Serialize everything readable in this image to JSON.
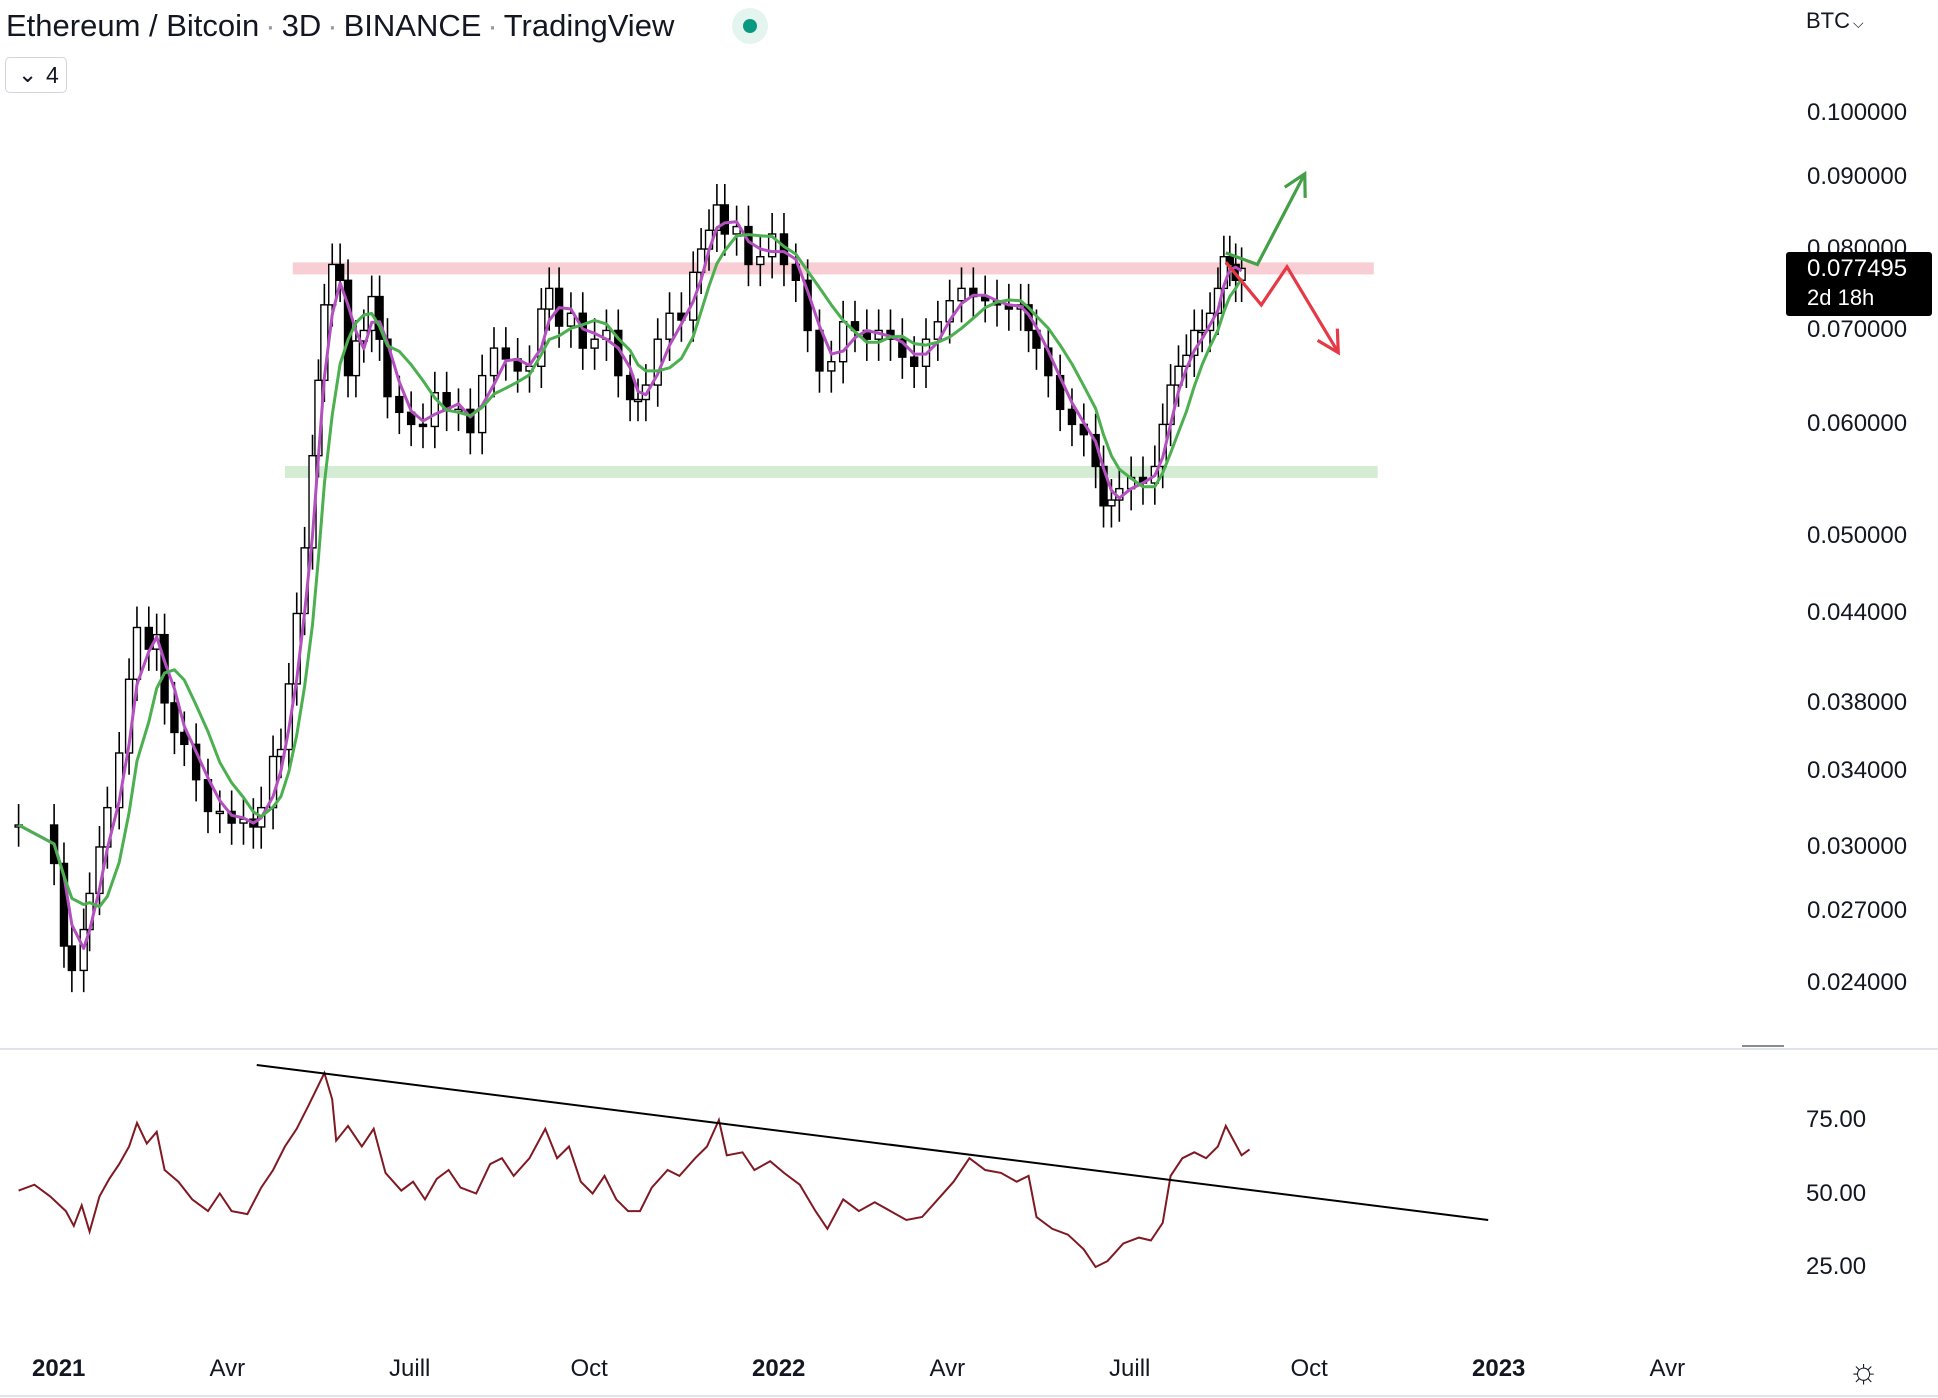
{
  "header": {
    "title_parts": [
      "Ethereum / Bitcoin",
      "3D",
      "BINANCE",
      "TradingView"
    ],
    "separator": "·",
    "collapse_count": "4",
    "currency": "BTC"
  },
  "last_price": {
    "value": "0.077495",
    "countdown": "2d 18h"
  },
  "colors": {
    "candle": "#000000",
    "ma_fast": "#b44fc0",
    "ma_slow": "#4caf50",
    "resistance_zone": "#f8cdd3",
    "support_zone": "#d4ecd4",
    "rsi": "#801922",
    "trendline": "#000000",
    "arrow_up": "#43a047",
    "arrow_down": "#e53945",
    "accent_dot": "#089981"
  },
  "chart_data": [
    {
      "type": "candlestick",
      "symbol": "Ethereum / Bitcoin",
      "interval": "3D",
      "exchange": "BINANCE",
      "scale": "log",
      "y_ticks": [
        "0.100000",
        "0.090000",
        "0.080000",
        "0.070000",
        "0.060000",
        "0.050000",
        "0.044000",
        "0.038000",
        "0.034000",
        "0.030000",
        "0.027000",
        "0.024000"
      ],
      "x_ticks": [
        "2021",
        "Avr",
        "Juill",
        "Oct",
        "2022",
        "Avr",
        "Juill",
        "Oct",
        "2023",
        "Avr"
      ],
      "x_range": [
        "2020-12-10",
        "2023-05-15"
      ],
      "y_range": [
        0.0225,
        0.106
      ],
      "series_close": [
        [
          "2020-12-10",
          0.0311
        ],
        [
          "2020-12-28",
          0.0292
        ],
        [
          "2021-01-02",
          0.0255
        ],
        [
          "2021-01-06",
          0.0245
        ],
        [
          "2021-01-12",
          0.0262
        ],
        [
          "2021-01-15",
          0.0278
        ],
        [
          "2021-01-20",
          0.03
        ],
        [
          "2021-01-24",
          0.032
        ],
        [
          "2021-01-30",
          0.035
        ],
        [
          "2021-02-04",
          0.0395
        ],
        [
          "2021-02-08",
          0.043
        ],
        [
          "2021-02-14",
          0.0415
        ],
        [
          "2021-02-18",
          0.0425
        ],
        [
          "2021-02-22",
          0.038
        ],
        [
          "2021-02-27",
          0.0362
        ],
        [
          "2021-03-04",
          0.0355
        ],
        [
          "2021-03-10",
          0.0335
        ],
        [
          "2021-03-16",
          0.0318
        ],
        [
          "2021-03-22",
          0.0318
        ],
        [
          "2021-03-28",
          0.0312
        ],
        [
          "2021-04-03",
          0.0314
        ],
        [
          "2021-04-08",
          0.031
        ],
        [
          "2021-04-12",
          0.032
        ],
        [
          "2021-04-18",
          0.0348
        ],
        [
          "2021-04-22",
          0.0352
        ],
        [
          "2021-04-26",
          0.0392
        ],
        [
          "2021-04-30",
          0.044
        ],
        [
          "2021-05-04",
          0.049
        ],
        [
          "2021-05-08",
          0.057
        ],
        [
          "2021-05-11",
          0.0645
        ],
        [
          "2021-05-14",
          0.073
        ],
        [
          "2021-05-18",
          0.078
        ],
        [
          "2021-05-22",
          0.076
        ],
        [
          "2021-05-26",
          0.065
        ],
        [
          "2021-05-30",
          0.0688
        ],
        [
          "2021-06-03",
          0.07
        ],
        [
          "2021-06-07",
          0.074
        ],
        [
          "2021-06-11",
          0.069
        ],
        [
          "2021-06-15",
          0.0628
        ],
        [
          "2021-06-21",
          0.0612
        ],
        [
          "2021-06-27",
          0.06
        ],
        [
          "2021-07-03",
          0.0598
        ],
        [
          "2021-07-09",
          0.0632
        ],
        [
          "2021-07-15",
          0.0615
        ],
        [
          "2021-07-21",
          0.0615
        ],
        [
          "2021-07-27",
          0.0592
        ],
        [
          "2021-08-02",
          0.065
        ],
        [
          "2021-08-08",
          0.068
        ],
        [
          "2021-08-14",
          0.0668
        ],
        [
          "2021-08-20",
          0.0655
        ],
        [
          "2021-08-26",
          0.066
        ],
        [
          "2021-09-01",
          0.0725
        ],
        [
          "2021-09-05",
          0.075
        ],
        [
          "2021-09-10",
          0.0705
        ],
        [
          "2021-09-16",
          0.072
        ],
        [
          "2021-09-22",
          0.068
        ],
        [
          "2021-09-28",
          0.069
        ],
        [
          "2021-10-04",
          0.07
        ],
        [
          "2021-10-10",
          0.065
        ],
        [
          "2021-10-16",
          0.0625
        ],
        [
          "2021-10-20",
          0.0625
        ],
        [
          "2021-10-24",
          0.064
        ],
        [
          "2021-10-30",
          0.069
        ],
        [
          "2021-11-05",
          0.072
        ],
        [
          "2021-11-11",
          0.0712
        ],
        [
          "2021-11-17",
          0.077
        ],
        [
          "2021-11-21",
          0.08
        ],
        [
          "2021-11-25",
          0.0825
        ],
        [
          "2021-11-29",
          0.086
        ],
        [
          "2021-12-03",
          0.082
        ],
        [
          "2021-12-09",
          0.083
        ],
        [
          "2021-12-15",
          0.078
        ],
        [
          "2021-12-21",
          0.079
        ],
        [
          "2021-12-27",
          0.082
        ],
        [
          "2022-01-02",
          0.078
        ],
        [
          "2022-01-08",
          0.076
        ],
        [
          "2022-01-14",
          0.07
        ],
        [
          "2022-01-20",
          0.0655
        ],
        [
          "2022-01-26",
          0.0665
        ],
        [
          "2022-02-01",
          0.071
        ],
        [
          "2022-02-07",
          0.07
        ],
        [
          "2022-02-13",
          0.069
        ],
        [
          "2022-02-19",
          0.07
        ],
        [
          "2022-02-25",
          0.069
        ],
        [
          "2022-03-03",
          0.067
        ],
        [
          "2022-03-09",
          0.066
        ],
        [
          "2022-03-15",
          0.069
        ],
        [
          "2022-03-21",
          0.071
        ],
        [
          "2022-03-27",
          0.0735
        ],
        [
          "2022-04-02",
          0.075
        ],
        [
          "2022-04-08",
          0.074
        ],
        [
          "2022-04-14",
          0.0735
        ],
        [
          "2022-04-20",
          0.073
        ],
        [
          "2022-04-26",
          0.0725
        ],
        [
          "2022-05-02",
          0.073
        ],
        [
          "2022-05-06",
          0.07
        ],
        [
          "2022-05-10",
          0.068
        ],
        [
          "2022-05-16",
          0.065
        ],
        [
          "2022-05-22",
          0.0615
        ],
        [
          "2022-05-28",
          0.06
        ],
        [
          "2022-06-03",
          0.059
        ],
        [
          "2022-06-09",
          0.056
        ],
        [
          "2022-06-13",
          0.0525
        ],
        [
          "2022-06-17",
          0.053
        ],
        [
          "2022-06-21",
          0.054
        ],
        [
          "2022-06-27",
          0.055
        ],
        [
          "2022-07-03",
          0.0545
        ],
        [
          "2022-07-09",
          0.056
        ],
        [
          "2022-07-13",
          0.06
        ],
        [
          "2022-07-17",
          0.064
        ],
        [
          "2022-07-21",
          0.066
        ],
        [
          "2022-07-25",
          0.0672
        ],
        [
          "2022-07-29",
          0.07
        ],
        [
          "2022-08-02",
          0.07
        ],
        [
          "2022-08-06",
          0.072
        ],
        [
          "2022-08-10",
          0.075
        ],
        [
          "2022-08-13",
          0.079
        ],
        [
          "2022-08-16",
          0.078
        ],
        [
          "2022-08-19",
          0.076
        ],
        [
          "2022-08-22",
          0.0775
        ]
      ],
      "zones": [
        {
          "kind": "resistance",
          "price": 0.0775,
          "from": "2021-04-28",
          "to": "2022-10-28"
        },
        {
          "kind": "support",
          "price": 0.0555,
          "from": "2021-04-24",
          "to": "2022-10-30"
        }
      ],
      "projections": {
        "bullish_path": [
          [
            "2022-08-14",
            0.0795
          ],
          [
            "2022-08-30",
            0.078
          ],
          [
            "2022-09-23",
            0.0905
          ]
        ],
        "bearish_path": [
          [
            "2022-08-14",
            0.0783
          ],
          [
            "2022-09-01",
            0.073
          ],
          [
            "2022-09-14",
            0.0777
          ],
          [
            "2022-10-10",
            0.0675
          ]
        ]
      }
    },
    {
      "type": "line",
      "panel": "oscillator",
      "y_ticks": [
        "75.00",
        "50.00",
        "25.00"
      ],
      "y_range": [
        10,
        95
      ],
      "series": [
        {
          "values": [
            [
              "2020-12-10",
              51
            ],
            [
              "2020-12-18",
              53
            ],
            [
              "2020-12-26",
              49
            ],
            [
              "2021-01-03",
              44
            ],
            [
              "2021-01-07",
              39
            ],
            [
              "2021-01-11",
              46
            ],
            [
              "2021-01-15",
              37
            ],
            [
              "2021-01-20",
              49
            ],
            [
              "2021-01-25",
              55
            ],
            [
              "2021-01-30",
              60
            ],
            [
              "2021-02-04",
              66
            ],
            [
              "2021-02-08",
              74
            ],
            [
              "2021-02-13",
              67
            ],
            [
              "2021-02-18",
              71
            ],
            [
              "2021-02-22",
              58
            ],
            [
              "2021-03-01",
              54
            ],
            [
              "2021-03-08",
              48
            ],
            [
              "2021-03-16",
              44
            ],
            [
              "2021-03-22",
              50
            ],
            [
              "2021-03-28",
              44
            ],
            [
              "2021-04-05",
              43
            ],
            [
              "2021-04-12",
              52
            ],
            [
              "2021-04-18",
              58
            ],
            [
              "2021-04-24",
              66
            ],
            [
              "2021-04-30",
              72
            ],
            [
              "2021-05-06",
              80
            ],
            [
              "2021-05-14",
              91
            ],
            [
              "2021-05-18",
              82
            ],
            [
              "2021-05-20",
              68
            ],
            [
              "2021-05-26",
              73
            ],
            [
              "2021-06-02",
              66
            ],
            [
              "2021-06-08",
              72
            ],
            [
              "2021-06-14",
              57
            ],
            [
              "2021-06-22",
              51
            ],
            [
              "2021-06-28",
              54
            ],
            [
              "2021-07-04",
              48
            ],
            [
              "2021-07-10",
              55
            ],
            [
              "2021-07-16",
              58
            ],
            [
              "2021-07-22",
              52
            ],
            [
              "2021-07-30",
              50
            ],
            [
              "2021-08-06",
              60
            ],
            [
              "2021-08-12",
              62
            ],
            [
              "2021-08-18",
              56
            ],
            [
              "2021-08-26",
              62
            ],
            [
              "2021-09-03",
              72
            ],
            [
              "2021-09-09",
              62
            ],
            [
              "2021-09-15",
              66
            ],
            [
              "2021-09-21",
              54
            ],
            [
              "2021-09-27",
              50
            ],
            [
              "2021-10-03",
              56
            ],
            [
              "2021-10-09",
              48
            ],
            [
              "2021-10-15",
              44
            ],
            [
              "2021-10-21",
              44
            ],
            [
              "2021-10-27",
              52
            ],
            [
              "2021-11-04",
              58
            ],
            [
              "2021-11-10",
              56
            ],
            [
              "2021-11-18",
              62
            ],
            [
              "2021-11-24",
              66
            ],
            [
              "2021-11-30",
              75
            ],
            [
              "2021-12-04",
              63
            ],
            [
              "2021-12-12",
              64
            ],
            [
              "2021-12-18",
              58
            ],
            [
              "2021-12-26",
              61
            ],
            [
              "2022-01-02",
              57
            ],
            [
              "2022-01-10",
              53
            ],
            [
              "2022-01-18",
              44
            ],
            [
              "2022-01-24",
              38
            ],
            [
              "2022-02-01",
              48
            ],
            [
              "2022-02-09",
              44
            ],
            [
              "2022-02-17",
              47
            ],
            [
              "2022-02-25",
              44
            ],
            [
              "2022-03-05",
              41
            ],
            [
              "2022-03-13",
              42
            ],
            [
              "2022-03-21",
              48
            ],
            [
              "2022-03-29",
              54
            ],
            [
              "2022-04-06",
              62
            ],
            [
              "2022-04-14",
              58
            ],
            [
              "2022-04-22",
              57
            ],
            [
              "2022-04-30",
              54
            ],
            [
              "2022-05-06",
              56
            ],
            [
              "2022-05-10",
              42
            ],
            [
              "2022-05-18",
              38
            ],
            [
              "2022-05-26",
              36
            ],
            [
              "2022-06-03",
              31
            ],
            [
              "2022-06-09",
              25
            ],
            [
              "2022-06-15",
              27
            ],
            [
              "2022-06-23",
              33
            ],
            [
              "2022-07-01",
              35
            ],
            [
              "2022-07-07",
              34
            ],
            [
              "2022-07-13",
              40
            ],
            [
              "2022-07-17",
              56
            ],
            [
              "2022-07-23",
              62
            ],
            [
              "2022-07-29",
              64
            ],
            [
              "2022-08-04",
              62
            ],
            [
              "2022-08-10",
              66
            ],
            [
              "2022-08-14",
              73
            ],
            [
              "2022-08-18",
              68
            ],
            [
              "2022-08-22",
              63
            ],
            [
              "2022-08-26",
              65
            ]
          ]
        }
      ],
      "trendline": [
        [
          "2021-04-30",
          92
        ],
        [
          "2022-12-25",
          41
        ]
      ]
    }
  ]
}
